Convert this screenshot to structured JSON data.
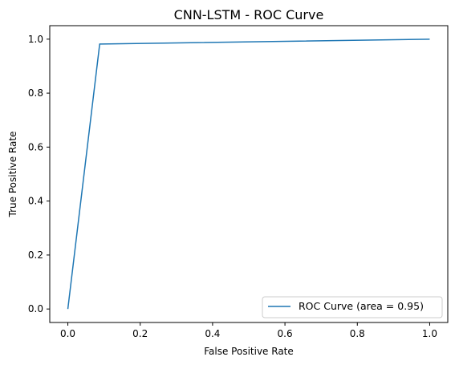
{
  "chart_data": {
    "type": "line",
    "title": "CNN-LSTM - ROC Curve",
    "xlabel": "False Positive Rate",
    "ylabel": "True Positive Rate",
    "xlim": [
      -0.05,
      1.05
    ],
    "ylim": [
      -0.05,
      1.05
    ],
    "xticks": [
      0.0,
      0.2,
      0.4,
      0.6,
      0.8,
      1.0
    ],
    "xtick_labels": [
      "0.0",
      "0.2",
      "0.4",
      "0.6",
      "0.8",
      "1.0"
    ],
    "yticks": [
      0.0,
      0.2,
      0.4,
      0.6,
      0.8,
      1.0
    ],
    "ytick_labels": [
      "0.0",
      "0.2",
      "0.4",
      "0.6",
      "0.8",
      "1.0"
    ],
    "grid": false,
    "legend_position": "lower-right",
    "series": [
      {
        "name": "ROC Curve (area = 0.95)",
        "color": "#1f77b4",
        "x": [
          0.0,
          0.088,
          1.0
        ],
        "y": [
          0.0,
          0.982,
          1.0
        ]
      }
    ]
  }
}
